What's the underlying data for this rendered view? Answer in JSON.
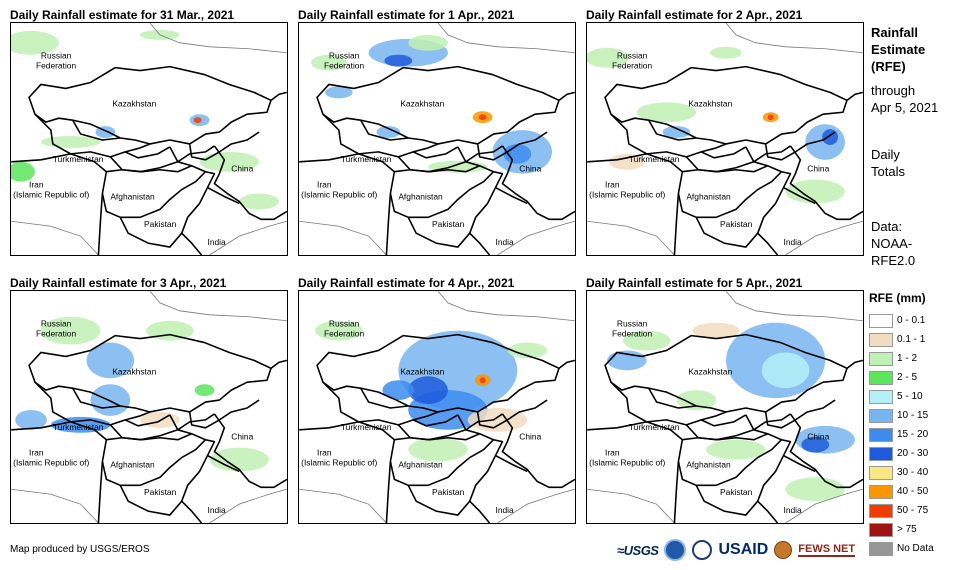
{
  "panels": [
    {
      "title": "Daily Rainfall estimate for 31 Mar., 2021"
    },
    {
      "title": "Daily Rainfall estimate for 1 Apr., 2021"
    },
    {
      "title": "Daily Rainfall estimate for 2 Apr., 2021"
    },
    {
      "title": "Daily Rainfall estimate for 3 Apr., 2021"
    },
    {
      "title": "Daily Rainfall estimate for 4 Apr., 2021"
    },
    {
      "title": "Daily Rainfall estimate for 5 Apr., 2021"
    }
  ],
  "map_labels": {
    "russia_1": "Russian",
    "russia_2": "Federation",
    "kazakhstan": "Kazakhstan",
    "turkmenistan": "Turkmenistan",
    "iran_1": "Iran",
    "iran_2": "(Islamic Republic of)",
    "afghanistan": "Afghanistan",
    "pakistan": "Pakistan",
    "china": "China",
    "india": "India"
  },
  "sidebar": {
    "title_1": "Rainfall",
    "title_2": "Estimate",
    "title_3": "(RFE)",
    "through_1": "through",
    "through_2": "Apr 5, 2021",
    "daily_1": "Daily",
    "daily_2": "Totals",
    "data_1": "Data:",
    "data_2": "NOAA-",
    "data_3": "RFE2.0"
  },
  "legend": {
    "title": "RFE (mm)",
    "items": [
      {
        "label": "0 - 0.1",
        "color": "#ffffff"
      },
      {
        "label": "0.1 - 1",
        "color": "#f2dcc0"
      },
      {
        "label": "1 - 2",
        "color": "#bff0b4"
      },
      {
        "label": "2 - 5",
        "color": "#5ce65c"
      },
      {
        "label": "5 - 10",
        "color": "#b4f0f8"
      },
      {
        "label": "10 - 15",
        "color": "#78b4f0"
      },
      {
        "label": "15 - 20",
        "color": "#3c8cf0"
      },
      {
        "label": "20 - 30",
        "color": "#1e5adc"
      },
      {
        "label": "30 - 40",
        "color": "#fae682"
      },
      {
        "label": "40 - 50",
        "color": "#fa9600"
      },
      {
        "label": "50 - 75",
        "color": "#f03c00"
      },
      {
        "label": "> 75",
        "color": "#a01414"
      },
      {
        "label": "No Data",
        "color": "#969696"
      }
    ]
  },
  "footer": {
    "credit": "Map produced by USGS/EROS",
    "logo_usgs": "≈USGS",
    "logo_usaid": "USAID",
    "logo_fews": "FEWS NET"
  }
}
